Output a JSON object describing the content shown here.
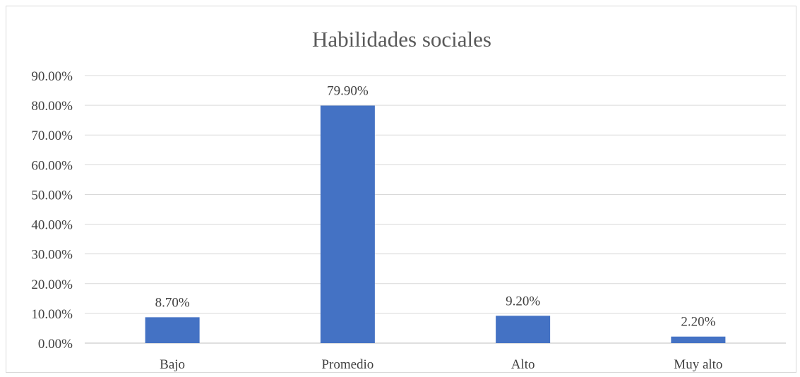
{
  "chart_data": {
    "type": "bar",
    "title": "Habilidades sociales",
    "xlabel": "",
    "ylabel": "",
    "categories": [
      "Bajo",
      "Promedio",
      "Alto",
      "Muy alto"
    ],
    "series": [
      {
        "values": [
          8.7,
          79.9,
          9.2,
          2.2
        ],
        "labels": [
          "8.70%",
          "79.90%",
          "9.20%",
          "2.20%"
        ],
        "color": "#4472c4"
      }
    ],
    "ylim": [
      0,
      90
    ],
    "yticks": [
      0,
      10,
      20,
      30,
      40,
      50,
      60,
      70,
      80,
      90
    ],
    "ytick_labels": [
      "0.00%",
      "10.00%",
      "20.00%",
      "30.00%",
      "40.00%",
      "50.00%",
      "60.00%",
      "70.00%",
      "80.00%",
      "90.00%"
    ],
    "grid": true,
    "legend": "none"
  }
}
